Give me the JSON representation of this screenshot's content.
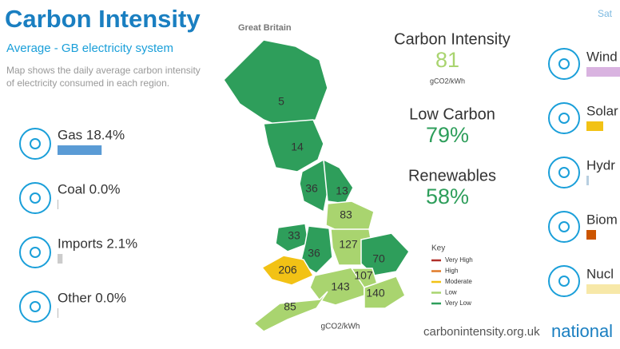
{
  "header": {
    "title": "Carbon Intensity",
    "region": "Great Britain",
    "subtitle": "Average - GB electricity system",
    "description": [
      "Map shows the daily average carbon intensity",
      "of electricity consumed in each region."
    ],
    "date": "Sat"
  },
  "fuels_left": [
    {
      "label": "Gas 18.4%",
      "value": 18.4,
      "color": "#5a9bd5"
    },
    {
      "label": "Coal 0.0%",
      "value": 0,
      "color": "#aaa"
    },
    {
      "label": "Imports 2.1%",
      "value": 2.1,
      "color": "#ccc"
    },
    {
      "label": "Other 0.0%",
      "value": 0,
      "color": "#aaa"
    }
  ],
  "fuels_right": [
    {
      "label": "Wind",
      "value": 25,
      "color": "#d9b3e0"
    },
    {
      "label": "Solar",
      "value": 7,
      "color": "#f2c215"
    },
    {
      "label": "Hydr",
      "value": 1,
      "color": "#b8cfe0"
    },
    {
      "label": "Biom",
      "value": 4,
      "color": "#cc5500"
    },
    {
      "label": "Nucl",
      "value": 15,
      "color": "#f7e8a8"
    }
  ],
  "stats": [
    {
      "label": "Carbon Intensity",
      "value": "81",
      "unit": "gCO2/kWh",
      "color": "#a9d46f"
    },
    {
      "label": "Low Carbon",
      "value": "79%",
      "color": "#2e9e5b"
    },
    {
      "label": "Renewables",
      "value": "58%",
      "color": "#2e9e5b"
    }
  ],
  "map": {
    "unit": "gCO2/kWh",
    "regions": [
      {
        "value": 5,
        "color": "#2e9e5b"
      },
      {
        "value": 14,
        "color": "#2e9e5b"
      },
      {
        "value": 36,
        "color": "#2e9e5b"
      },
      {
        "value": 13,
        "color": "#2e9e5b"
      },
      {
        "value": 83,
        "color": "#a9d46f"
      },
      {
        "value": 33,
        "color": "#2e9e5b"
      },
      {
        "value": 36,
        "color": "#2e9e5b"
      },
      {
        "value": 127,
        "color": "#a9d46f"
      },
      {
        "value": 206,
        "color": "#f2c215"
      },
      {
        "value": 70,
        "color": "#2e9e5b"
      },
      {
        "value": 143,
        "color": "#a9d46f"
      },
      {
        "value": 107,
        "color": "#a9d46f"
      },
      {
        "value": 140,
        "color": "#a9d46f"
      },
      {
        "value": 85,
        "color": "#a9d46f"
      }
    ]
  },
  "key": {
    "title": "Key",
    "items": [
      {
        "label": "Very High",
        "color": "#b0302a"
      },
      {
        "label": "High",
        "color": "#e07b28"
      },
      {
        "label": "Moderate",
        "color": "#f2c215"
      },
      {
        "label": "Low",
        "color": "#a9d46f"
      },
      {
        "label": "Very Low",
        "color": "#2e9e5b"
      }
    ]
  },
  "footer": {
    "site": "carbonintensity.org.uk",
    "brand": "national"
  }
}
